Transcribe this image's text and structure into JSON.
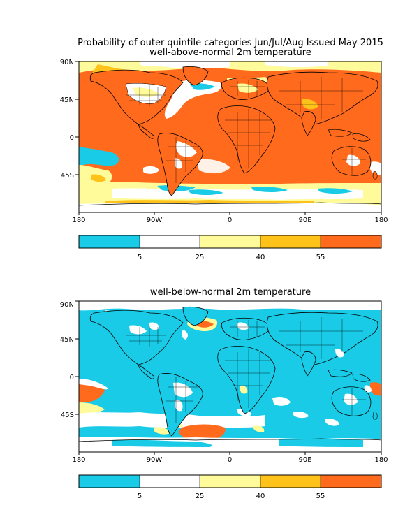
{
  "title": {
    "line1": "Probability of outer quintile categories Jun/Jul/Aug Issued May 2015",
    "panel1": "well-above-normal 2m temperature",
    "panel2": "well-below-normal 2m temperature"
  },
  "axes": {
    "lon_ticks": [
      "180",
      "90W",
      "0",
      "90E",
      "180"
    ],
    "lat_ticks": [
      "90N",
      "45N",
      "0",
      "45S"
    ]
  },
  "colorbar": {
    "labels": [
      "5",
      "25",
      "40",
      "55"
    ],
    "colors": [
      "#19cbe6",
      "#ffffff",
      "#fffa9a",
      "#ffc21b",
      "#ff6a1d"
    ]
  },
  "colors": {
    "frame": "#000000",
    "coast": "#000000"
  }
}
